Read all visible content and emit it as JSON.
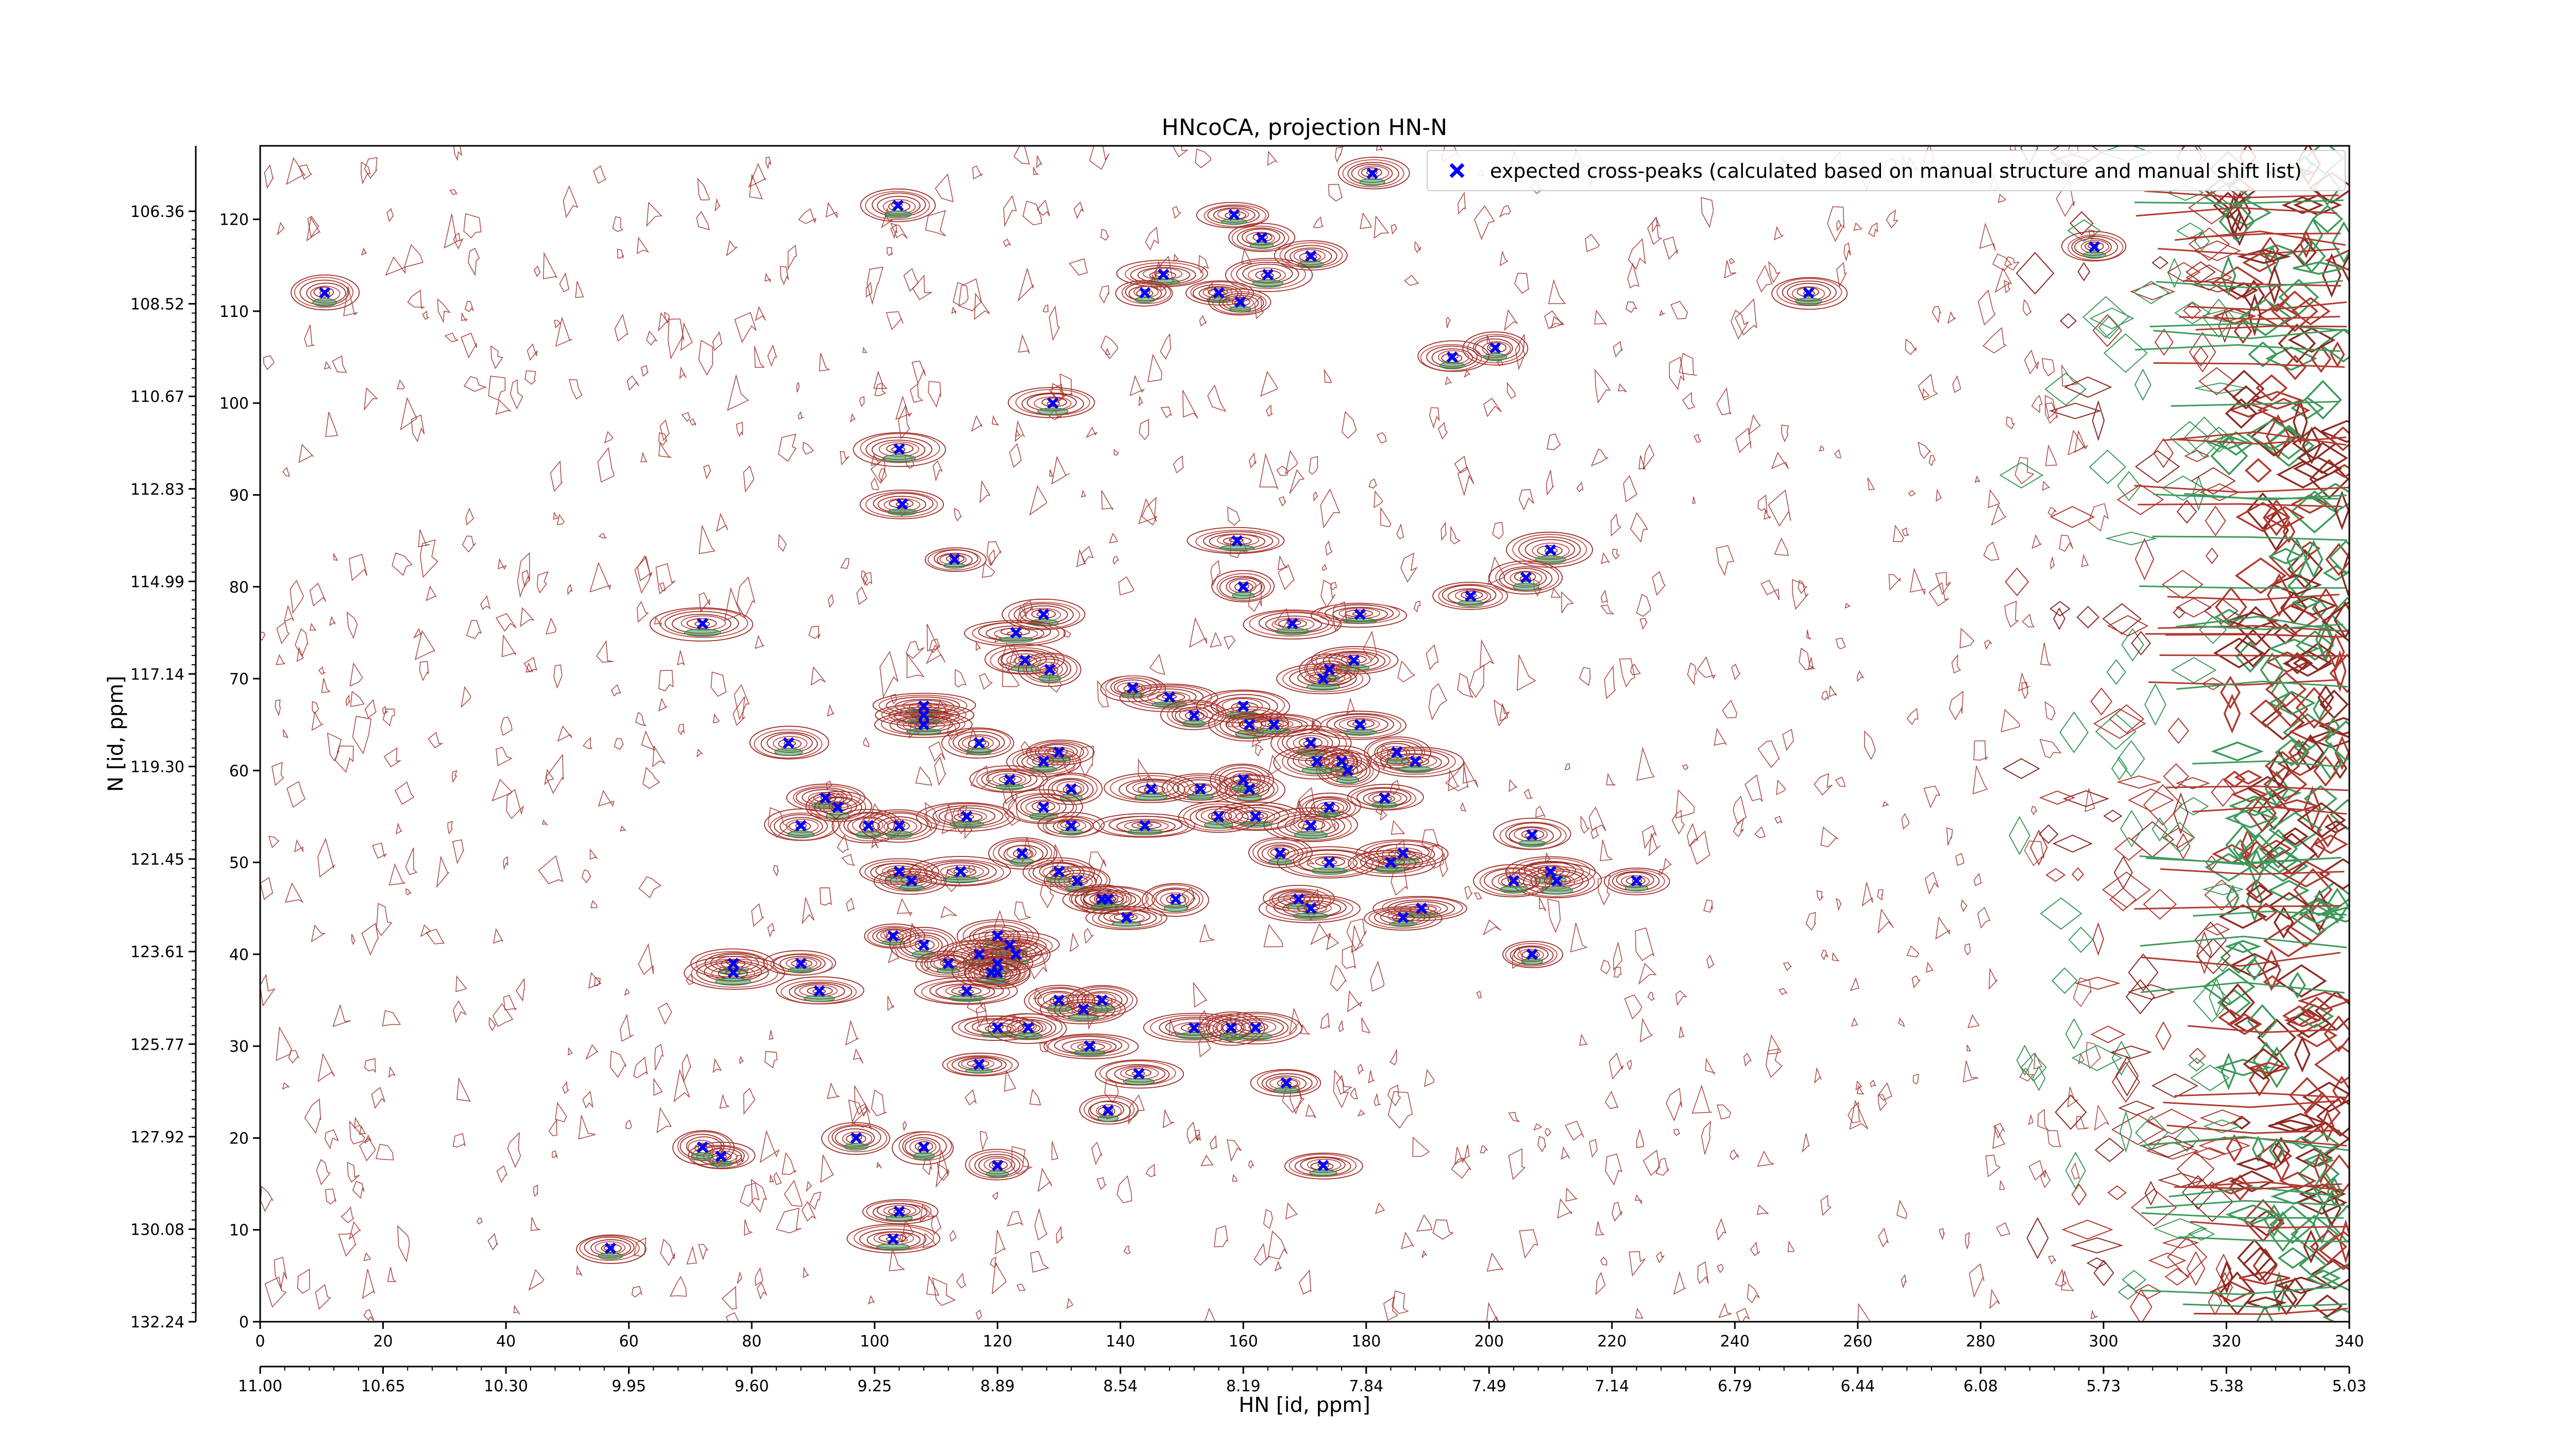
{
  "chart_data": {
    "type": "scatter",
    "title": "HNcoCA, projection HN-N",
    "xlabel": "HN [id, ppm]",
    "ylabel": "N [id, ppm]",
    "x_index_ticks": [
      "0",
      "20",
      "40",
      "60",
      "80",
      "100",
      "120",
      "140",
      "160",
      "180",
      "200",
      "220",
      "240",
      "260",
      "280",
      "300",
      "320",
      "340"
    ],
    "x_ppm_ticks": [
      "11.00",
      "10.65",
      "10.30",
      "9.95",
      "9.60",
      "9.25",
      "8.89",
      "8.54",
      "8.19",
      "7.84",
      "7.49",
      "7.14",
      "6.79",
      "6.44",
      "6.08",
      "5.73",
      "5.38",
      "5.03"
    ],
    "y_index_ticks": [
      "0",
      "10",
      "20",
      "30",
      "40",
      "50",
      "60",
      "70",
      "80",
      "90",
      "100",
      "110",
      "120"
    ],
    "y_ppm_ticks": [
      "132.24",
      "130.08",
      "127.92",
      "125.77",
      "123.61",
      "121.45",
      "119.30",
      "117.14",
      "114.99",
      "112.83",
      "110.67",
      "108.52",
      "106.36"
    ],
    "xlim": [
      0,
      340
    ],
    "ylim": [
      0,
      128
    ],
    "legend_position": "top-right",
    "series": [
      {
        "name": "expected cross-peaks (calculated based on manual structure and manual shift list)",
        "color": "#0000ff",
        "marker": "x",
        "points": [
          [
            10.5,
            112
          ],
          [
            103.8,
            121.5
          ],
          [
            181,
            125
          ],
          [
            158.5,
            120.5
          ],
          [
            163,
            118
          ],
          [
            171,
            116
          ],
          [
            147,
            114
          ],
          [
            164,
            114
          ],
          [
            144,
            112
          ],
          [
            156,
            112
          ],
          [
            159.5,
            111
          ],
          [
            252,
            112
          ],
          [
            298.5,
            117
          ],
          [
            201,
            106
          ],
          [
            194,
            105
          ],
          [
            129,
            100
          ],
          [
            104,
            95
          ],
          [
            104.5,
            89
          ],
          [
            113,
            83
          ],
          [
            159,
            85
          ],
          [
            160,
            80
          ],
          [
            210,
            84
          ],
          [
            206,
            81
          ],
          [
            197,
            79
          ],
          [
            72,
            76
          ],
          [
            127.5,
            77
          ],
          [
            123,
            75
          ],
          [
            168,
            76
          ],
          [
            179,
            77
          ],
          [
            124.5,
            72
          ],
          [
            128.5,
            71
          ],
          [
            174,
            71
          ],
          [
            178,
            72
          ],
          [
            142,
            69
          ],
          [
            148,
            68
          ],
          [
            152,
            66
          ],
          [
            160,
            67
          ],
          [
            173,
            70
          ],
          [
            108,
            67
          ],
          [
            108,
            66
          ],
          [
            108,
            65
          ],
          [
            161,
            65
          ],
          [
            165,
            65
          ],
          [
            179,
            65
          ],
          [
            117,
            63
          ],
          [
            86,
            63
          ],
          [
            130,
            62
          ],
          [
            171,
            63
          ],
          [
            185,
            62
          ],
          [
            177,
            60
          ],
          [
            176,
            61
          ],
          [
            172,
            61
          ],
          [
            188,
            61
          ],
          [
            127.5,
            61
          ],
          [
            122,
            59
          ],
          [
            145,
            58
          ],
          [
            132,
            58
          ],
          [
            153,
            58
          ],
          [
            161,
            58
          ],
          [
            160,
            59
          ],
          [
            92,
            57
          ],
          [
            94,
            56
          ],
          [
            127.5,
            56
          ],
          [
            162,
            55
          ],
          [
            171,
            54
          ],
          [
            156,
            55
          ],
          [
            174,
            56
          ],
          [
            115,
            55
          ],
          [
            132,
            54
          ],
          [
            144,
            54
          ],
          [
            183,
            57
          ],
          [
            88,
            54
          ],
          [
            99,
            54
          ],
          [
            104,
            54
          ],
          [
            207,
            53
          ],
          [
            124,
            51
          ],
          [
            186,
            51
          ],
          [
            166,
            51
          ],
          [
            174,
            50
          ],
          [
            184,
            50
          ],
          [
            104,
            49
          ],
          [
            114,
            49
          ],
          [
            130,
            49
          ],
          [
            133,
            48
          ],
          [
            106,
            48
          ],
          [
            210,
            49
          ],
          [
            211,
            48
          ],
          [
            224,
            48
          ],
          [
            204,
            48
          ],
          [
            137,
            46
          ],
          [
            138,
            46
          ],
          [
            149,
            46
          ],
          [
            169,
            46
          ],
          [
            171,
            45
          ],
          [
            189,
            45
          ],
          [
            186,
            44
          ],
          [
            141,
            44
          ],
          [
            103,
            42
          ],
          [
            108,
            41
          ],
          [
            120,
            42
          ],
          [
            122,
            41
          ],
          [
            117,
            40
          ],
          [
            123,
            40
          ],
          [
            207,
            40
          ],
          [
            77,
            39
          ],
          [
            77,
            38
          ],
          [
            88,
            39
          ],
          [
            112,
            39
          ],
          [
            120,
            39
          ],
          [
            120,
            38
          ],
          [
            119,
            38
          ],
          [
            115,
            36
          ],
          [
            91,
            36
          ],
          [
            130,
            35
          ],
          [
            134,
            34
          ],
          [
            137,
            35
          ],
          [
            162,
            32
          ],
          [
            152,
            32
          ],
          [
            158,
            32
          ],
          [
            120,
            32
          ],
          [
            125,
            32
          ],
          [
            135,
            30
          ],
          [
            117,
            28
          ],
          [
            143,
            27
          ],
          [
            167,
            26
          ],
          [
            138,
            23
          ],
          [
            75,
            18
          ],
          [
            72,
            19
          ],
          [
            97,
            20
          ],
          [
            108,
            19
          ],
          [
            120,
            17
          ],
          [
            173,
            17
          ],
          [
            104,
            12
          ],
          [
            103,
            9
          ],
          [
            57,
            8
          ]
        ]
      }
    ]
  }
}
